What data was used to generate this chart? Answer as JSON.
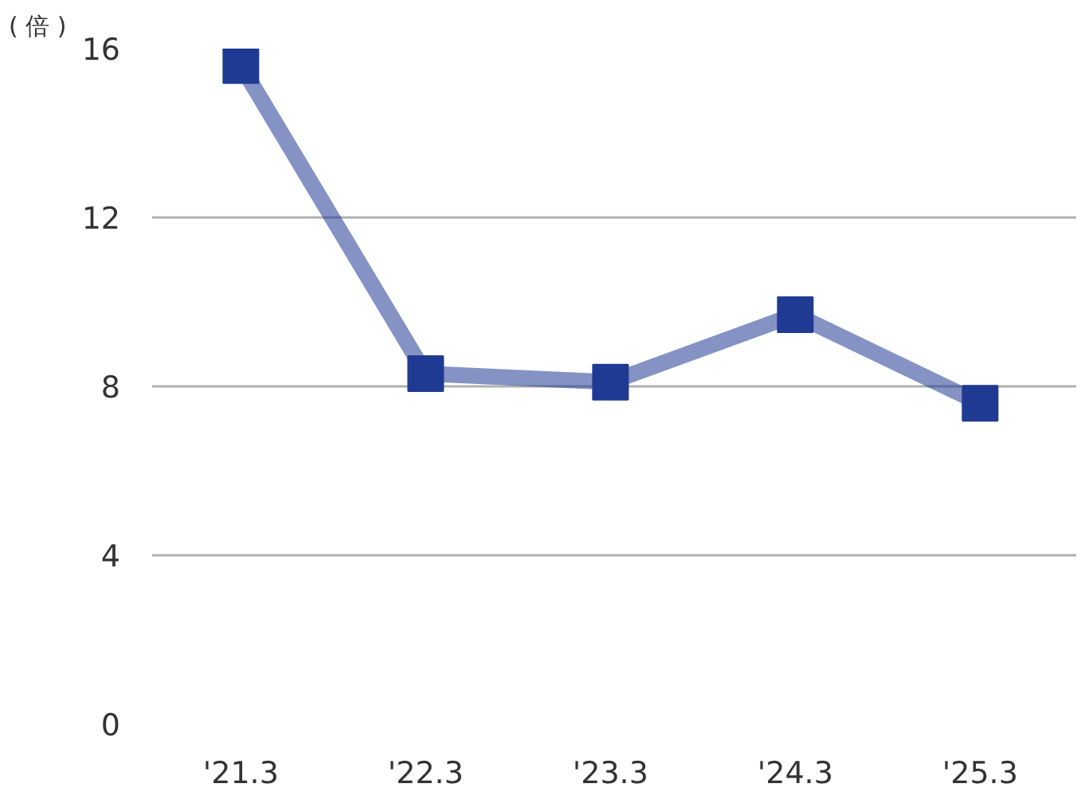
{
  "chart_data": {
    "type": "line",
    "ylabel": "( 倍 )",
    "categories": [
      "'21.3",
      "'22.3",
      "'23.3",
      "'24.3",
      "'25.3"
    ],
    "series": [
      {
        "color": "#1f3a93",
        "values": [
          15.6,
          8.3,
          8.1,
          9.7,
          7.6
        ]
      }
    ],
    "ylim": [
      0,
      16
    ],
    "yticks": [
      0,
      4,
      8,
      12,
      16
    ],
    "grid": "y",
    "marker": "square",
    "line_style": "solid"
  }
}
